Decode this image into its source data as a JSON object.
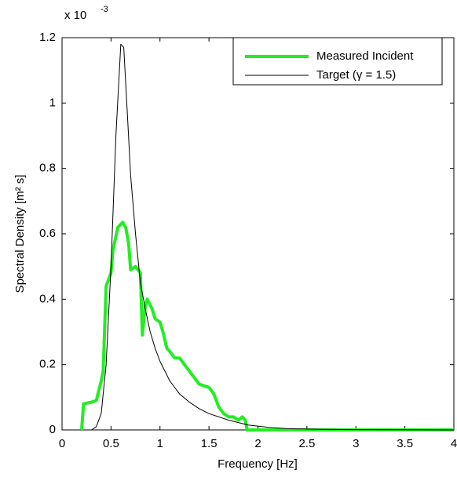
{
  "chart_data": {
    "type": "line",
    "xlabel": "Frequency [Hz]",
    "ylabel": "Spectral Density [m² s]",
    "y_multiplier": "x 10",
    "y_exponent": "-3",
    "xlim": [
      0,
      4
    ],
    "xticks": [
      0,
      0.5,
      1,
      1.5,
      2,
      2.5,
      3,
      3.5,
      4
    ],
    "ylim": [
      0,
      1.2
    ],
    "yticks": [
      0,
      0.2,
      0.4,
      0.6,
      0.8,
      1,
      1.2
    ],
    "grid": false,
    "legend": "upper right",
    "series": [
      {
        "name": "Measured Incident",
        "color": "#22ee22",
        "width": 4,
        "x": [
          0.2,
          0.22,
          0.3,
          0.35,
          0.4,
          0.42,
          0.45,
          0.5,
          0.52,
          0.57,
          0.62,
          0.65,
          0.68,
          0.7,
          0.75,
          0.8,
          0.82,
          0.85,
          0.87,
          0.92,
          0.95,
          1.0,
          1.03,
          1.07,
          1.1,
          1.15,
          1.2,
          1.25,
          1.3,
          1.35,
          1.4,
          1.5,
          1.55,
          1.6,
          1.65,
          1.7,
          1.75,
          1.8,
          1.84,
          1.87,
          1.89,
          4
        ],
        "values": [
          0,
          0.08,
          0.085,
          0.09,
          0.15,
          0.18,
          0.44,
          0.48,
          0.55,
          0.62,
          0.635,
          0.62,
          0.57,
          0.49,
          0.5,
          0.48,
          0.29,
          0.38,
          0.4,
          0.37,
          0.34,
          0.33,
          0.3,
          0.25,
          0.24,
          0.22,
          0.22,
          0.2,
          0.18,
          0.16,
          0.14,
          0.13,
          0.11,
          0.07,
          0.05,
          0.04,
          0.04,
          0.03,
          0.04,
          0.03,
          0,
          0
        ]
      },
      {
        "name": "Target (γ = 1.5)",
        "color": "#000000",
        "width": 1,
        "x": [
          0.3,
          0.35,
          0.4,
          0.45,
          0.5,
          0.55,
          0.6,
          0.63,
          0.67,
          0.7,
          0.75,
          0.8,
          0.85,
          0.9,
          0.95,
          1.0,
          1.1,
          1.2,
          1.3,
          1.4,
          1.5,
          1.7,
          1.9,
          2.1,
          2.3,
          2.6,
          3,
          4
        ],
        "values": [
          0,
          0.01,
          0.05,
          0.2,
          0.5,
          0.9,
          1.18,
          1.17,
          0.95,
          0.78,
          0.6,
          0.45,
          0.37,
          0.3,
          0.25,
          0.21,
          0.15,
          0.11,
          0.085,
          0.065,
          0.05,
          0.03,
          0.015,
          0.008,
          0.004,
          0.002,
          0.001,
          0
        ]
      }
    ]
  }
}
